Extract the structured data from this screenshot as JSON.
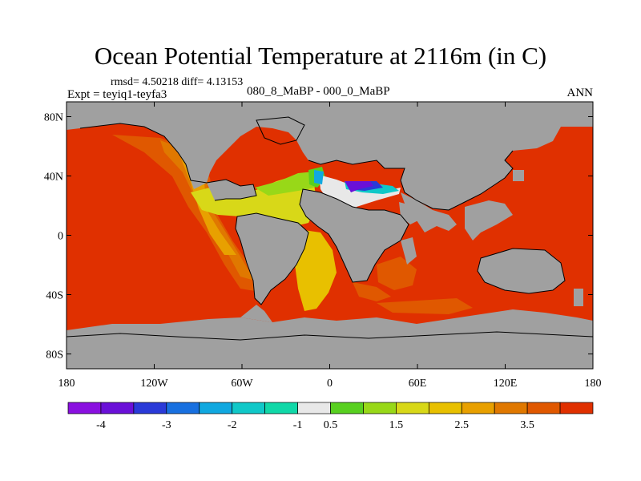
{
  "title": "Ocean Potential Temperature at 2116m (in C)",
  "stats": {
    "rmsd_label": "rmsd=",
    "rmsd": "4.50218",
    "diff_label": "diff=",
    "diff": "4.13153"
  },
  "expt_label": "Expt = teyiq1-teyfa3",
  "difference_label": "080_8_MaBP - 000_0_MaBP",
  "season": "ANN",
  "colors": {
    "land": "#a0a0a0",
    "warm_ocean": "#e03000",
    "border": "#000000"
  },
  "chart_data": {
    "type": "heatmap",
    "title": "Ocean Potential Temperature at 2116m (in C)",
    "x_range": [
      -180,
      180
    ],
    "y_range": [
      -90,
      90
    ],
    "x_ticks": [
      {
        "value": -180,
        "label": "180"
      },
      {
        "value": -120,
        "label": "120W"
      },
      {
        "value": -60,
        "label": "60W"
      },
      {
        "value": 0,
        "label": "0"
      },
      {
        "value": 60,
        "label": "60E"
      },
      {
        "value": 120,
        "label": "120E"
      },
      {
        "value": 180,
        "label": "180"
      }
    ],
    "y_ticks": [
      {
        "value": 80,
        "label": "80N"
      },
      {
        "value": 40,
        "label": "40N"
      },
      {
        "value": 0,
        "label": "0"
      },
      {
        "value": -40,
        "label": "40S"
      },
      {
        "value": -80,
        "label": "80S"
      }
    ],
    "colorbar": {
      "bins": [
        {
          "color": "#8a10e0"
        },
        {
          "color": "#6a10d8"
        },
        {
          "color": "#2a3ad8"
        },
        {
          "color": "#1870e0"
        },
        {
          "color": "#10a8e0"
        },
        {
          "color": "#10c8c8"
        },
        {
          "color": "#10d8a8"
        },
        {
          "color": "#e8e8e8"
        },
        {
          "color": "#58d020"
        },
        {
          "color": "#98d818"
        },
        {
          "color": "#d8d818"
        },
        {
          "color": "#e8c000"
        },
        {
          "color": "#e8a000"
        },
        {
          "color": "#e07800"
        },
        {
          "color": "#e05800"
        },
        {
          "color": "#e03000"
        }
      ],
      "labels": [
        {
          "boundary": 1,
          "label": "-4"
        },
        {
          "boundary": 3,
          "label": "-3"
        },
        {
          "boundary": 5,
          "label": "-2"
        },
        {
          "boundary": 7,
          "label": "-1"
        },
        {
          "boundary": 8,
          "label": "0.5"
        },
        {
          "boundary": 10,
          "label": "1.5"
        },
        {
          "boundary": 12,
          "label": "2.5"
        },
        {
          "boundary": 14,
          "label": "3.5"
        }
      ]
    }
  }
}
